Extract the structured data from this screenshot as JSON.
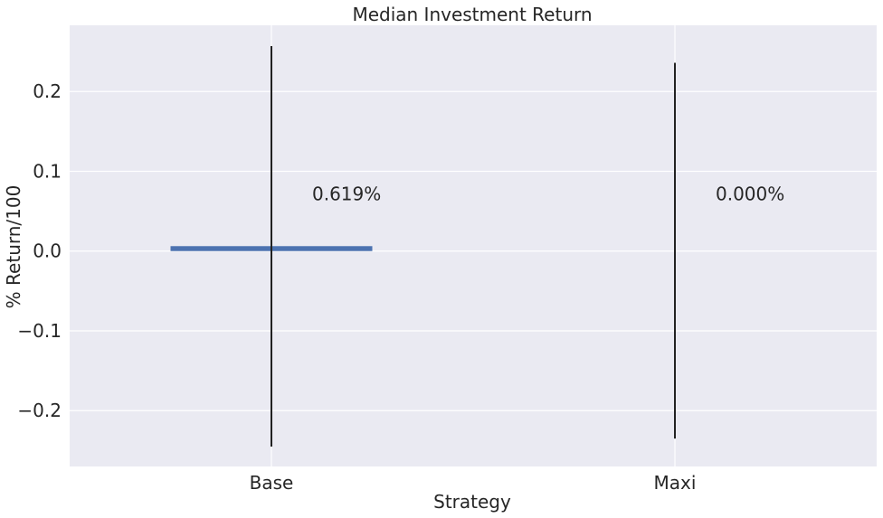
{
  "chart_data": {
    "type": "bar",
    "title": "Median Investment Return",
    "xlabel": "Strategy",
    "ylabel": "% Return/100",
    "categories": [
      "Base",
      "Maxi"
    ],
    "values": [
      0.00619,
      0.0
    ],
    "error_bars": [
      {
        "low": -0.245,
        "high": 0.257
      },
      {
        "low": -0.235,
        "high": 0.236
      }
    ],
    "data_labels": [
      "0.619%",
      "0.000%"
    ],
    "ylim": [
      -0.27,
      0.283
    ],
    "yticks": [
      -0.2,
      -0.1,
      0.0,
      0.1,
      0.2
    ],
    "ytick_labels": [
      "−0.2",
      "−0.1",
      "0.0",
      "0.1",
      "0.2"
    ],
    "data_label_y": 0.058,
    "grid": true,
    "colors": {
      "background": "#eaeaf2",
      "grid": "#ffffff",
      "bar": "#4c72b0",
      "error_bar": "#222222",
      "text": "#262626"
    }
  }
}
